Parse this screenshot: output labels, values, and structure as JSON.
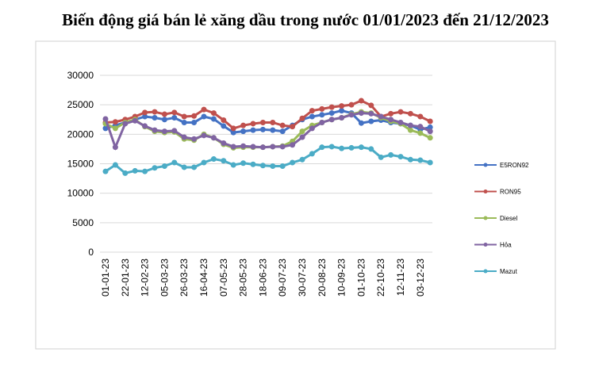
{
  "chart_data": {
    "type": "line",
    "title": "Biến động giá bán lẻ xăng dầu trong nước 01/01/2023 đến 21/12/2023",
    "categories": [
      "01-01-23",
      null,
      "22-01-23",
      null,
      "12-02-23",
      null,
      "05-03-23",
      null,
      "26-03-23",
      null,
      "16-04-23",
      null,
      "07-05-23",
      null,
      "28-05-23",
      null,
      "18-06-23",
      null,
      "09-07-23",
      null,
      "30-07-23",
      null,
      "20-08-23",
      null,
      "10-09-23",
      null,
      "01-10-23",
      null,
      "22-10-23",
      null,
      "12-11-23",
      null,
      "03-12-23",
      null
    ],
    "series": [
      {
        "name": "E5RON92",
        "color": "#4472c4",
        "values": [
          21000,
          21500,
          22000,
          22500,
          23000,
          22800,
          22500,
          22800,
          22000,
          22000,
          23000,
          22600,
          21400,
          20300,
          20500,
          20700,
          20800,
          20700,
          20500,
          21500,
          22500,
          23000,
          23300,
          23600,
          24000,
          23600,
          21900,
          22200,
          22400,
          22000,
          21800,
          21500,
          20800,
          21200
        ]
      },
      {
        "name": "RON95",
        "color": "#c0504d",
        "values": [
          22000,
          22100,
          22500,
          23000,
          23700,
          23800,
          23400,
          23700,
          23000,
          23100,
          24200,
          23600,
          22400,
          21000,
          21500,
          21800,
          22000,
          22000,
          21500,
          21300,
          22700,
          24000,
          24300,
          24600,
          24800,
          25000,
          25700,
          24900,
          23000,
          23500,
          23800,
          23500,
          23000,
          22200
        ]
      },
      {
        "name": "Diesel",
        "color": "#9bbb59",
        "values": [
          21800,
          21000,
          22000,
          22500,
          21300,
          20500,
          20300,
          20400,
          19200,
          19000,
          20000,
          19400,
          18300,
          17700,
          17800,
          17800,
          17800,
          17900,
          18000,
          18800,
          20500,
          21500,
          22000,
          22500,
          22800,
          23400,
          23800,
          23600,
          22800,
          22200,
          21800,
          20700,
          20200,
          19400
        ]
      },
      {
        "name": "Hỏa",
        "color": "#8064a2",
        "values": [
          22600,
          17800,
          21800,
          22300,
          21400,
          20700,
          20500,
          20600,
          19500,
          19200,
          19800,
          19400,
          18500,
          17900,
          18000,
          17900,
          17800,
          17900,
          17900,
          18200,
          19500,
          21000,
          22000,
          22500,
          22800,
          23300,
          23600,
          23500,
          23000,
          22500,
          22000,
          21500,
          21300,
          20500
        ]
      },
      {
        "name": "Mazut",
        "color": "#4bacc6",
        "values": [
          13700,
          14800,
          13400,
          13800,
          13700,
          14300,
          14600,
          15200,
          14400,
          14400,
          15200,
          15800,
          15500,
          14800,
          15100,
          14900,
          14700,
          14600,
          14600,
          15200,
          15700,
          16700,
          17800,
          17900,
          17600,
          17700,
          17800,
          17500,
          16100,
          16500,
          16200,
          15700,
          15600,
          15200
        ]
      }
    ],
    "ylim": [
      0,
      30000
    ],
    "yticks": [
      0,
      5000,
      10000,
      15000,
      20000,
      25000,
      30000
    ],
    "grid": true,
    "legend": "right"
  }
}
